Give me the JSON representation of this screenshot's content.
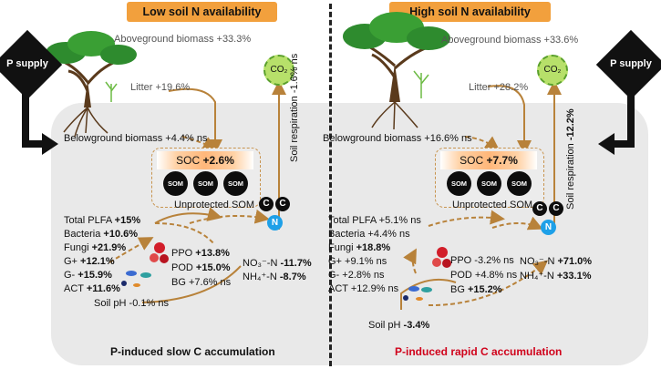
{
  "headers": {
    "left": "Low soil N availability",
    "right": "High soil N availability"
  },
  "colors": {
    "header": "#f2a03d",
    "arrow": "#b8823a",
    "panel": "#e9e9e9",
    "som_bar": "#ffb77a",
    "co2": "#b7e06a",
    "n_ball": "#1ea0e8",
    "footer_right": "#d0021b"
  },
  "p_supply": "P supply",
  "co2": "CO₂",
  "left": {
    "aboveground": "Aboveground biomass +33.3%",
    "litter": "Litter +19.6%",
    "belowground": "Belowground biomass +4.4% ns",
    "soil_resp": "Soil respiration -1.6% ns",
    "soc_label": "SOC",
    "soc_value": "+2.6%",
    "unprotected": "Unprotected SOM",
    "microbes": [
      {
        "name": "Total PLFA",
        "value": "+15%",
        "ns": ""
      },
      {
        "name": "Bacteria",
        "value": "+10.6%",
        "ns": ""
      },
      {
        "name": "Fungi",
        "value": "+21.9%",
        "ns": ""
      },
      {
        "name": "G+",
        "value": "+12.1%",
        "ns": ""
      },
      {
        "name": "G-",
        "value": "+15.9%",
        "ns": ""
      },
      {
        "name": "ACT",
        "value": "+11.6%",
        "ns": ""
      }
    ],
    "enzymes": [
      {
        "name": "PPO",
        "value": "+13.8%",
        "ns": ""
      },
      {
        "name": "POD",
        "value": "+15.0%",
        "ns": ""
      },
      {
        "name": "BG",
        "value": "+7.6%",
        "ns": "ns"
      }
    ],
    "no3": {
      "label": "NO₃⁻-N",
      "value": "-11.7%"
    },
    "nh4": {
      "label": "NH₄⁺-N",
      "value": "-8.7%"
    },
    "ph": {
      "label": "Soil pH",
      "value": "-0.1% ns"
    },
    "footer": "P-induced slow C accumulation"
  },
  "right": {
    "aboveground": "Aboveground biomass +33.6%",
    "litter": "Litter +28.2%",
    "belowground": "Belowground biomass +16.6% ns",
    "soil_resp_label": "Soil respiration",
    "soil_resp_value": "-12.2%",
    "soc_label": "SOC",
    "soc_value": "+7.7%",
    "unprotected": "Unprotected SOM",
    "microbes": [
      {
        "name": "Total PLFA",
        "value": "+5.1% ns",
        "bold": false
      },
      {
        "name": "Bacteria",
        "value": "+4.4% ns",
        "bold": false
      },
      {
        "name": "Fungi",
        "value": "+18.8%",
        "bold": true
      },
      {
        "name": "G+",
        "value": "+9.1% ns",
        "bold": false
      },
      {
        "name": "G-",
        "value": "+2.8% ns",
        "bold": false
      },
      {
        "name": "ACT",
        "value": "+12.9% ns",
        "bold": false
      }
    ],
    "enzymes": [
      {
        "name": "PPO",
        "value": "-3.2% ns",
        "bold": false
      },
      {
        "name": "POD",
        "value": "+4.8% ns",
        "bold": false
      },
      {
        "name": "BG",
        "value": "+15.2%",
        "bold": true
      }
    ],
    "no3": {
      "label": "NO₃⁻-N",
      "value": "+71.0%"
    },
    "nh4": {
      "label": "NH₄⁺-N",
      "value": "+33.1%"
    },
    "ph": {
      "label": "Soil pH",
      "value": "-3.4%"
    },
    "footer": "P-induced rapid C accumulation"
  },
  "som_label": "SOM",
  "c_label": "C",
  "n_label": "N"
}
